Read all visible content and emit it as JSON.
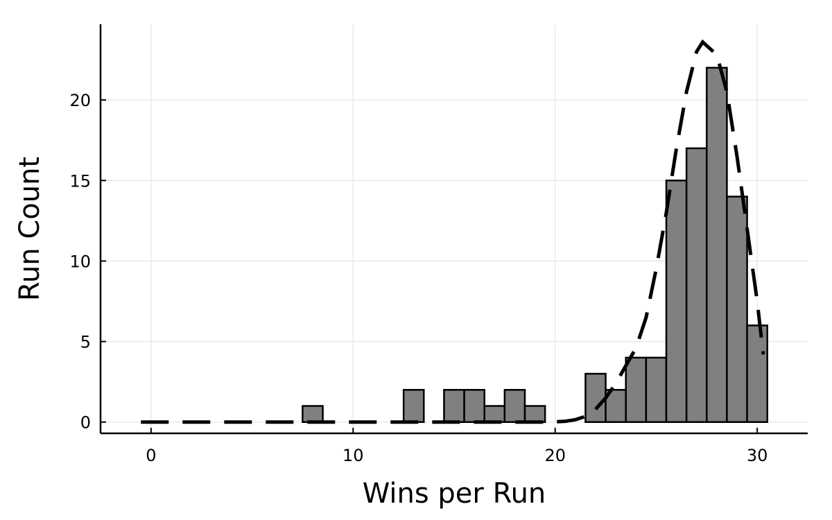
{
  "chart_data": {
    "type": "bar",
    "subtype": "histogram",
    "xlabel": "Wins per Run",
    "ylabel": "Run Count",
    "xlim": [
      -2.5,
      32.5
    ],
    "ylim": [
      -0.7,
      24.7
    ],
    "xticks": [
      0,
      10,
      20,
      30
    ],
    "yticks": [
      0,
      5,
      10,
      15,
      20
    ],
    "grid": true,
    "bin_width": 1,
    "bins": [
      {
        "x0": 7.5,
        "x1": 8.5,
        "count": 1
      },
      {
        "x0": 12.5,
        "x1": 13.5,
        "count": 2
      },
      {
        "x0": 14.5,
        "x1": 15.5,
        "count": 2
      },
      {
        "x0": 15.5,
        "x1": 16.5,
        "count": 2
      },
      {
        "x0": 16.5,
        "x1": 17.5,
        "count": 1
      },
      {
        "x0": 17.5,
        "x1": 18.5,
        "count": 2
      },
      {
        "x0": 18.5,
        "x1": 19.5,
        "count": 1
      },
      {
        "x0": 21.5,
        "x1": 22.5,
        "count": 3
      },
      {
        "x0": 22.5,
        "x1": 23.5,
        "count": 2
      },
      {
        "x0": 23.5,
        "x1": 24.5,
        "count": 4
      },
      {
        "x0": 24.5,
        "x1": 25.5,
        "count": 4
      },
      {
        "x0": 25.5,
        "x1": 26.5,
        "count": 15
      },
      {
        "x0": 26.5,
        "x1": 27.5,
        "count": 17
      },
      {
        "x0": 27.5,
        "x1": 28.5,
        "count": 22
      },
      {
        "x0": 28.5,
        "x1": 29.5,
        "count": 14
      },
      {
        "x0": 29.5,
        "x1": 30.5,
        "count": 6
      }
    ],
    "density_curve": {
      "style": "dashed",
      "color": "#000000",
      "x": [
        -0.5,
        19.8,
        20.5,
        21.0,
        21.5,
        22.0,
        22.5,
        23.0,
        23.5,
        24.0,
        24.5,
        25.0,
        25.5,
        26.0,
        26.5,
        27.0,
        27.3,
        28.0,
        28.5,
        29.0,
        29.5,
        30.0,
        30.3
      ],
      "y": [
        0,
        0,
        0.05,
        0.15,
        0.35,
        0.8,
        1.5,
        2.4,
        3.5,
        4.6,
        6.5,
        9.5,
        13.0,
        17.0,
        20.5,
        23.0,
        23.6,
        22.8,
        20.5,
        16.5,
        12.0,
        7.5,
        4.2
      ]
    },
    "colors": {
      "bar_fill": "#808080",
      "bar_edge": "#000000",
      "grid": "#e6e6e6"
    }
  }
}
